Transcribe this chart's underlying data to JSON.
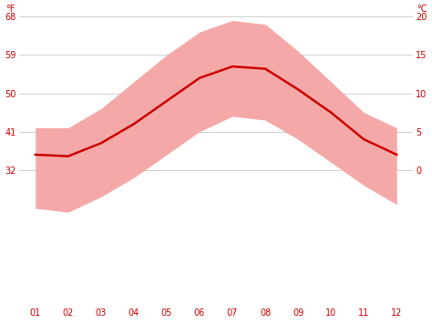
{
  "months": [
    1,
    2,
    3,
    4,
    5,
    6,
    7,
    8,
    9,
    10,
    11,
    12
  ],
  "month_labels": [
    "01",
    "02",
    "03",
    "04",
    "05",
    "06",
    "07",
    "08",
    "09",
    "10",
    "11",
    "12"
  ],
  "avg_temp_c": [
    2.0,
    1.8,
    3.5,
    6.0,
    9.0,
    12.0,
    13.5,
    13.2,
    10.5,
    7.5,
    4.0,
    2.0
  ],
  "max_temp_c": [
    5.5,
    5.5,
    8.0,
    11.5,
    15.0,
    18.0,
    19.5,
    19.0,
    15.5,
    11.5,
    7.5,
    5.5
  ],
  "min_temp_c": [
    -5.0,
    -5.5,
    -3.5,
    -1.0,
    2.0,
    5.0,
    7.0,
    6.5,
    4.0,
    1.0,
    -2.0,
    -4.5
  ],
  "avg_color": "#cc0000",
  "band_color": "#f4a9a8",
  "background_color": "#ffffff",
  "grid_color": "#d0d0d0",
  "label_color": "#cc0000",
  "ylim_c": [
    -17.78,
    20.0
  ],
  "yticks_c": [
    0,
    5,
    10,
    15,
    20
  ],
  "yticks_f": [
    32,
    41,
    50,
    59,
    68
  ],
  "ytick_f_labels": [
    "32",
    "41",
    "50",
    "59",
    "68"
  ],
  "ytick_c_labels": [
    "0",
    "5",
    "10",
    "15",
    "20"
  ],
  "ylabel_left": "°F",
  "ylabel_right": "°C",
  "line_width": 1.8,
  "figsize": [
    4.74,
    3.55
  ],
  "dpi": 100
}
